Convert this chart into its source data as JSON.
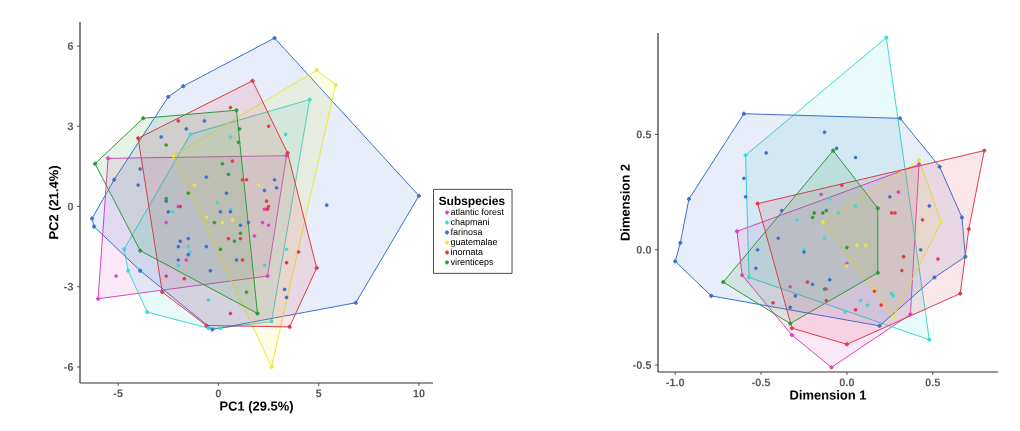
{
  "chart_data": [
    {
      "type": "scatter",
      "xlabel": "PC1 (29.5%)",
      "ylabel": "PC2 (21.4%)",
      "xlim": [
        -6.9,
        10.7
      ],
      "ylim": [
        -6.6,
        6.9
      ],
      "xticks": [
        -5,
        0,
        5,
        10
      ],
      "yticks": [
        -6,
        -3,
        0,
        3,
        6
      ],
      "marker": "circle",
      "legend": "right",
      "legend_title": "Subspecies",
      "series": [
        {
          "name": "atlantic forest",
          "color": "#e040c0",
          "x": [
            -5.1,
            2.2,
            2.5,
            -2.0,
            -2.6,
            -1.6,
            2.3,
            1.8
          ],
          "values": [
            -2.6,
            -0.6,
            -0.7,
            0.0,
            -0.6,
            -2.0,
            -0.1,
            -1.1
          ]
        },
        {
          "name": "chapmani",
          "color": "#40d8d0",
          "x": [
            0.6,
            3.35,
            -0.05,
            0.6,
            -2.3,
            -1.5,
            -1.4,
            2.3,
            3.4,
            -0.5,
            -2.0
          ],
          "values": [
            2.6,
            2.7,
            0.15,
            -0.1,
            -0.2,
            -1.5,
            -1.7,
            -2.2,
            -1.6,
            -3.5,
            -2.2
          ]
        },
        {
          "name": "farinosa",
          "color": "#3a6fd0",
          "x": [
            5.4,
            -2.85,
            -3.9,
            -4.0,
            -0.7,
            -1.6,
            -1.5,
            -2.0,
            -1.5,
            -2.0,
            -1.9,
            -2.5,
            -2.6,
            0.1,
            0.6,
            2.8,
            2.9,
            3.3,
            3.4,
            -0.4,
            0.9,
            1.5,
            0.4,
            -0.6,
            2.3,
            1.1,
            -0.6
          ],
          "values": [
            0.05,
            2.6,
            1.4,
            0.8,
            3.2,
            2.9,
            -1.2,
            -1.5,
            -1.8,
            -2.0,
            -1.3,
            -0.2,
            0.2,
            -0.2,
            -0.2,
            1.0,
            0.7,
            -3.1,
            -3.4,
            -2.4,
            -2.0,
            -0.6,
            0.5,
            1.1,
            0.6,
            -0.7,
            -1.5
          ]
        },
        {
          "name": "guatemalae",
          "color": "#e8e83a",
          "x": [
            -1.2,
            0.2,
            -0.6,
            2.0,
            0.7
          ],
          "values": [
            0.8,
            -0.6,
            -0.4,
            0.8,
            -0.5
          ]
        },
        {
          "name": "inornata",
          "color": "#e03a4a",
          "x": [
            -2.0,
            0.6,
            2.5,
            0.7,
            1.2,
            1.4,
            2.4,
            2.5,
            2.45,
            1.1,
            0.5,
            -2.6,
            -1.7,
            0.6,
            4.0,
            3.4,
            1.2,
            -1.9
          ],
          "values": [
            3.2,
            3.7,
            3.0,
            1.7,
            1.0,
            1.0,
            0.2,
            0.0,
            -0.1,
            -1.2,
            -1.2,
            -2.6,
            -2.7,
            -4.0,
            -1.7,
            -2.1,
            -2.0,
            0.0
          ]
        },
        {
          "name": "virenticeps",
          "color": "#2f9a3a",
          "x": [
            -2.6,
            -2.6,
            0.2,
            0.5,
            1.0,
            1.05,
            -0.2,
            0.1,
            1.1,
            0.8,
            1.4,
            -1.5
          ],
          "values": [
            2.3,
            0.3,
            1.6,
            1.2,
            2.4,
            2.9,
            -0.6,
            -1.6,
            -1.0,
            -1.3,
            -3.2,
            0.5
          ]
        },
        {
          "type": "area",
          "color": "#e040c0",
          "x": [
            -5.5,
            3.4,
            2.45,
            -6.0
          ],
          "values": [
            1.8,
            1.9,
            -2.6,
            -3.45
          ]
        },
        {
          "type": "area",
          "color": "#40d8d0",
          "x": [
            -1.4,
            4.55,
            2.65,
            0.1,
            -0.5,
            -3.55,
            -4.5,
            -4.7
          ],
          "values": [
            2.7,
            4.0,
            -4.3,
            -4.55,
            -4.55,
            -3.95,
            -2.4,
            -1.6
          ]
        },
        {
          "type": "area",
          "color": "#3a6fd0",
          "x": [
            2.8,
            10.0,
            6.85,
            -0.3,
            -3.9,
            -6.2,
            -6.3,
            -5.2,
            -2.5,
            -1.75
          ],
          "values": [
            6.3,
            0.4,
            -3.6,
            -4.6,
            -2.4,
            -0.75,
            -0.45,
            1.0,
            4.1,
            4.5
          ]
        },
        {
          "type": "area",
          "color": "#e8e83a",
          "x": [
            -2.25,
            4.9,
            5.85,
            2.65
          ],
          "values": [
            1.9,
            5.1,
            4.55,
            -6.0
          ]
        },
        {
          "type": "area",
          "color": "#e03a4a",
          "x": [
            1.7,
            3.45,
            4.9,
            3.55,
            -0.6,
            -2.8,
            -4.0
          ],
          "values": [
            4.7,
            2.0,
            -2.3,
            -4.5,
            -4.45,
            -3.2,
            2.55
          ]
        },
        {
          "type": "area",
          "color": "#2f9a3a",
          "x": [
            -3.75,
            0.9,
            1.95,
            -3.9,
            -6.15
          ],
          "values": [
            3.3,
            3.6,
            -4.0,
            -1.65,
            1.6
          ]
        }
      ]
    },
    {
      "type": "scatter",
      "xlabel": "Dimension 1",
      "ylabel": "Dimension 2",
      "xlim": [
        -1.1,
        0.88
      ],
      "ylim": [
        -0.53,
        0.94
      ],
      "xticks": [
        {
          "value": -1.0,
          "label": "-1.0"
        },
        {
          "value": -0.5,
          "label": "-0.5"
        },
        {
          "value": 0.0,
          "label": "0.0"
        },
        {
          "value": 0.5,
          "label": "0.5"
        }
      ],
      "yticks": [
        {
          "value": -0.5,
          "label": "-0.5"
        },
        {
          "value": 0.0,
          "label": "0.0"
        },
        {
          "value": 0.5,
          "label": "0.5"
        }
      ],
      "marker": "circle",
      "series": [
        {
          "color": "#e040c0",
          "x": [
            -0.15,
            0.0,
            -0.33,
            0.3,
            -0.12
          ],
          "values": [
            0.24,
            -0.06,
            -0.16,
            0.25,
            -0.17
          ]
        },
        {
          "color": "#40d8d0",
          "x": [
            -0.29,
            -0.25,
            -0.13,
            0.05,
            -0.1,
            0.26,
            0.27,
            -0.01,
            0.08,
            0.12,
            -0.05
          ],
          "values": [
            0.13,
            0.0,
            0.05,
            0.19,
            0.22,
            -0.19,
            -0.2,
            -0.27,
            -0.22,
            -0.24,
            0.16
          ]
        },
        {
          "color": "#3a6fd0",
          "x": [
            -0.13,
            -0.47,
            -0.06,
            0.05,
            -0.6,
            -0.59,
            -0.38,
            -0.4,
            -0.52,
            -0.53,
            -0.33,
            -0.2,
            -0.1,
            0.25,
            0.43,
            0.48,
            -0.25,
            -0.3
          ],
          "values": [
            0.51,
            0.42,
            0.44,
            0.4,
            0.31,
            0.23,
            0.17,
            0.05,
            0.0,
            -0.08,
            -0.25,
            -0.15,
            -0.13,
            0.23,
            0.0,
            0.19,
            -0.01,
            -0.2
          ]
        },
        {
          "color": "#e8e83a",
          "x": [
            0.11,
            0.0,
            0.16,
            0.06
          ],
          "values": [
            0.02,
            -0.07,
            -0.17,
            0.02
          ]
        },
        {
          "color": "#e03a4a",
          "x": [
            -0.03,
            0.28,
            0.44,
            0.26,
            0.33,
            0.32,
            0.53,
            0.16,
            0.2,
            -0.12,
            -0.23,
            -0.43,
            0.05
          ],
          "values": [
            0.28,
            0.16,
            0.13,
            0.16,
            -0.03,
            -0.09,
            -0.04,
            -0.18,
            -0.24,
            -0.22,
            -0.14,
            -0.23,
            -0.26
          ]
        },
        {
          "color": "#2f9a3a",
          "x": [
            -0.19,
            -0.14,
            -0.12,
            -0.2,
            -0.13,
            0.0
          ],
          "values": [
            0.16,
            0.16,
            0.17,
            0.14,
            -0.17,
            0.01
          ]
        },
        {
          "type": "area",
          "color": "#e040c0",
          "x": [
            -0.64,
            0.42,
            0.37,
            -0.09,
            -0.32,
            -0.61
          ],
          "values": [
            0.08,
            0.37,
            -0.28,
            -0.51,
            -0.37,
            -0.11
          ]
        },
        {
          "type": "area",
          "color": "#40d8d0",
          "x": [
            0.23,
            0.48,
            -0.57,
            -0.59
          ],
          "values": [
            0.92,
            -0.39,
            -0.12,
            0.41
          ]
        },
        {
          "type": "area",
          "color": "#3a6fd0",
          "x": [
            -0.6,
            0.31,
            0.54,
            0.67,
            0.69,
            0.51,
            0.19,
            -0.79,
            -1.0,
            -0.97,
            -0.92
          ],
          "values": [
            0.59,
            0.57,
            0.36,
            0.14,
            -0.03,
            -0.12,
            -0.33,
            -0.2,
            -0.05,
            0.03,
            0.22
          ]
        },
        {
          "type": "area",
          "color": "#e8e83a",
          "x": [
            0.42,
            0.55,
            0.27,
            -0.14
          ],
          "values": [
            0.39,
            0.12,
            -0.29,
            0.12
          ]
        },
        {
          "type": "area",
          "color": "#e03a4a",
          "x": [
            0.8,
            0.71,
            0.66,
            0.0,
            -0.32,
            -0.52
          ],
          "values": [
            0.43,
            0.09,
            -0.19,
            -0.41,
            -0.34,
            0.2
          ]
        },
        {
          "type": "area",
          "color": "#2f9a3a",
          "x": [
            -0.08,
            0.18,
            0.18,
            -0.33,
            -0.72
          ],
          "values": [
            0.43,
            0.18,
            -0.1,
            -0.32,
            -0.14
          ]
        }
      ]
    }
  ]
}
